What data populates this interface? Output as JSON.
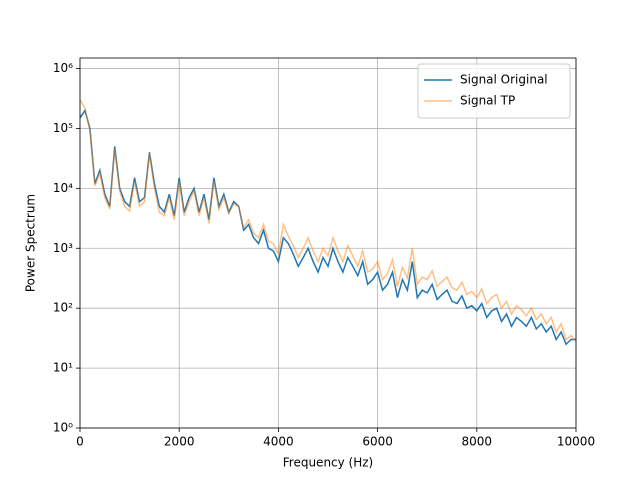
{
  "chart_data": {
    "type": "line",
    "xlabel": "Frequency (Hz)",
    "ylabel": "Power Spectrum",
    "x": [
      0,
      100,
      200,
      300,
      400,
      500,
      600,
      700,
      800,
      900,
      1000,
      1100,
      1200,
      1300,
      1400,
      1500,
      1600,
      1700,
      1800,
      1900,
      2000,
      2100,
      2200,
      2300,
      2400,
      2500,
      2600,
      2700,
      2800,
      2900,
      3000,
      3100,
      3200,
      3300,
      3400,
      3500,
      3600,
      3700,
      3800,
      3900,
      4000,
      4100,
      4200,
      4300,
      4400,
      4500,
      4600,
      4700,
      4800,
      4900,
      5000,
      5100,
      5200,
      5300,
      5400,
      5500,
      5600,
      5700,
      5800,
      5900,
      6000,
      6100,
      6200,
      6300,
      6400,
      6500,
      6600,
      6700,
      6800,
      6900,
      7000,
      7100,
      7200,
      7300,
      7400,
      7500,
      7600,
      7700,
      7800,
      7900,
      8000,
      8100,
      8200,
      8300,
      8400,
      8500,
      8600,
      8700,
      8800,
      8900,
      9000,
      9100,
      9200,
      9300,
      9400,
      9500,
      9600,
      9700,
      9800,
      9900,
      10000
    ],
    "series": [
      {
        "name": "Signal Original",
        "color": "#1f77b4",
        "alpha": 1,
        "values": [
          150000,
          200000,
          100000,
          12000,
          20000,
          8000,
          5000,
          50000,
          10000,
          6000,
          5000,
          15000,
          6000,
          7000,
          40000,
          12000,
          5000,
          4000,
          8000,
          3500,
          15000,
          4000,
          7000,
          10000,
          4000,
          8000,
          3000,
          15000,
          5000,
          8000,
          4000,
          6000,
          5000,
          2000,
          2500,
          1500,
          1200,
          2000,
          1000,
          900,
          600,
          1500,
          1200,
          800,
          500,
          700,
          1000,
          600,
          400,
          700,
          500,
          1000,
          600,
          400,
          700,
          500,
          350,
          600,
          250,
          300,
          400,
          200,
          250,
          400,
          150,
          300,
          200,
          600,
          150,
          200,
          180,
          250,
          140,
          170,
          200,
          130,
          120,
          160,
          100,
          110,
          90,
          120,
          70,
          90,
          100,
          60,
          80,
          50,
          70,
          60,
          50,
          70,
          45,
          55,
          40,
          50,
          30,
          40,
          25,
          30,
          30
        ]
      },
      {
        "name": "Signal TP",
        "color": "#ff7f0e",
        "alpha": 0.5,
        "values": [
          300000,
          220000,
          90000,
          11000,
          18000,
          7000,
          4500,
          45000,
          9000,
          5000,
          4200,
          13000,
          5000,
          6000,
          38000,
          10000,
          4000,
          3500,
          7000,
          3000,
          13000,
          3500,
          6000,
          9000,
          3500,
          7000,
          2600,
          13000,
          4500,
          7000,
          3800,
          5500,
          5000,
          2200,
          3000,
          1800,
          1500,
          2500,
          1300,
          1200,
          800,
          2500,
          1600,
          1100,
          700,
          1000,
          1500,
          900,
          600,
          1000,
          750,
          1500,
          900,
          600,
          1100,
          750,
          500,
          900,
          400,
          450,
          600,
          300,
          380,
          650,
          230,
          480,
          320,
          1000,
          250,
          330,
          300,
          420,
          230,
          280,
          330,
          220,
          200,
          270,
          170,
          190,
          150,
          210,
          120,
          150,
          170,
          100,
          130,
          80,
          110,
          95,
          75,
          100,
          65,
          80,
          55,
          70,
          40,
          55,
          30,
          35,
          28
        ]
      }
    ],
    "xlim": [
      0,
      10000
    ],
    "xticks": [
      0,
      2000,
      4000,
      6000,
      8000,
      10000
    ],
    "ylim": [
      1,
      1500000
    ],
    "yscale": "log",
    "yticks": [
      {
        "value": 1,
        "label": "10⁰"
      },
      {
        "value": 10,
        "label": "10¹"
      },
      {
        "value": 100,
        "label": "10²"
      },
      {
        "value": 1000,
        "label": "10³"
      },
      {
        "value": 10000,
        "label": "10⁴"
      },
      {
        "value": 100000,
        "label": "10⁵"
      },
      {
        "value": 1000000,
        "label": "10⁶"
      }
    ],
    "grid": true,
    "legend": "upper right"
  }
}
